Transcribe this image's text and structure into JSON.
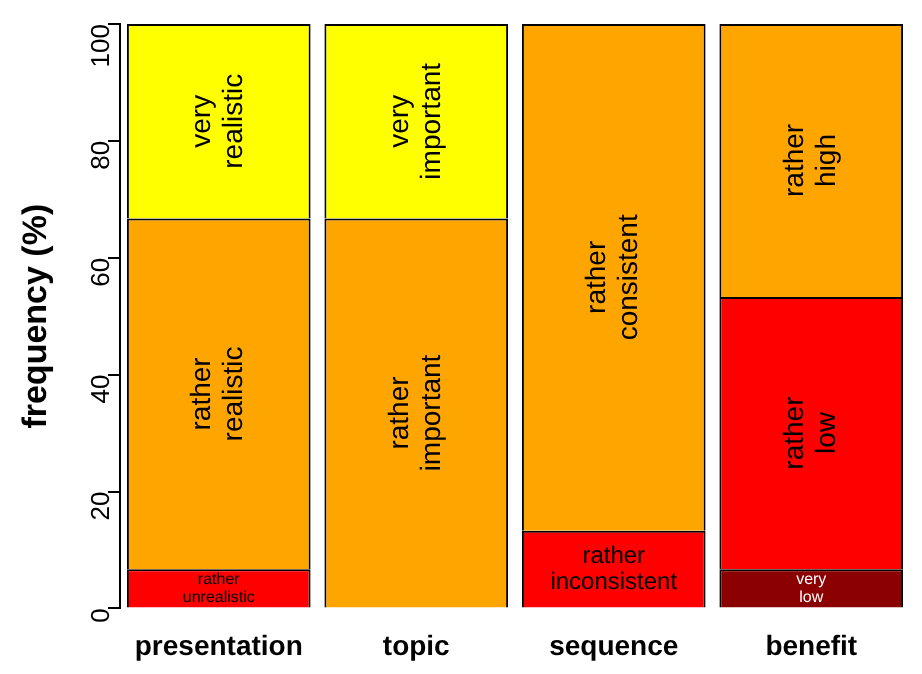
{
  "chart_data": {
    "type": "bar",
    "stacked": true,
    "ylabel": "frequency (%)",
    "categories": [
      "presentation",
      "topic",
      "sequence",
      "benefit"
    ],
    "ylim": [
      0,
      100
    ],
    "yticks": [
      0,
      20,
      40,
      60,
      80,
      100
    ],
    "grid": false,
    "legend": false,
    "series": [
      {
        "color": "#8b0000",
        "values": [
          null,
          null,
          null,
          6.7
        ],
        "value_labels": [
          null,
          null,
          null,
          "very\nlow"
        ]
      },
      {
        "color": "#ff0000",
        "values": [
          6.7,
          null,
          13.3,
          46.6
        ],
        "value_labels": [
          "rather\nunrealistic",
          null,
          "rather\ninconsistent",
          "rather\nlow"
        ]
      },
      {
        "color": "#ffa500",
        "values": [
          60,
          66.7,
          86.7,
          46.7
        ],
        "value_labels": [
          "rather\nrealistic",
          "rather\nimportant",
          "rather\nconsistent",
          "rather\nhigh"
        ]
      },
      {
        "color": "#ffff00",
        "values": [
          33.3,
          33.3,
          null,
          null
        ],
        "value_labels": [
          "very\nrealistic",
          "very\nimportant",
          null,
          null
        ]
      }
    ]
  }
}
